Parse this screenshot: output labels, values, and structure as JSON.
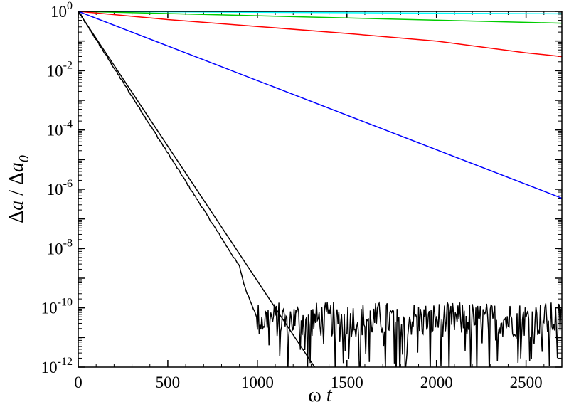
{
  "chart_data": {
    "type": "line",
    "xlabel": "ω t",
    "ylabel": "Δa / Δa0",
    "xlim": [
      0,
      2700
    ],
    "ylim_log10": [
      -12,
      0
    ],
    "y_scale": "log",
    "grid": false,
    "legend": "none",
    "x_ticks": [
      "0",
      "500",
      "1000",
      "1500",
      "2000",
      "2500"
    ],
    "y_ticks": [
      {
        "exp": 0,
        "base": "10",
        "sup": "0"
      },
      {
        "exp": -2,
        "base": "10",
        "sup": "-2"
      },
      {
        "exp": -4,
        "base": "10",
        "sup": "-4"
      },
      {
        "exp": -6,
        "base": "10",
        "sup": "-6"
      },
      {
        "exp": -8,
        "base": "10",
        "sup": "-8"
      },
      {
        "exp": -10,
        "base": "10",
        "sup": "-10"
      },
      {
        "exp": -12,
        "base": "10",
        "sup": "-12"
      }
    ],
    "series": [
      {
        "color": "#00ffff",
        "x": [
          0,
          2700
        ],
        "y": [
          1,
          0.83
        ]
      },
      {
        "color": "#00cc00",
        "x": [
          0,
          2700
        ],
        "y": [
          1,
          0.4
        ]
      },
      {
        "color": "#ff0000",
        "x": [
          0,
          500,
          1000,
          1500,
          2000,
          2500,
          2700
        ],
        "y": [
          1,
          0.53,
          0.31,
          0.18,
          0.1,
          0.04,
          0.03
        ]
      },
      {
        "color": "#0000ff",
        "x": [
          0,
          2700
        ],
        "y": [
          1,
          5e-07
        ]
      },
      {
        "color": "#000000",
        "x": [
          0,
          1320
        ],
        "y": [
          1,
          1e-12
        ]
      },
      {
        "color": "#000000",
        "noisy": true,
        "x": [
          0,
          900,
          930,
          950,
          970,
          990,
          1000,
          1010
        ],
        "y": [
          1,
          2.5e-09,
          5e-10,
          2.5e-10,
          1.3e-10,
          6e-11,
          4e-11,
          3e-11
        ],
        "noise_range_x": [
          1000,
          2700
        ],
        "noise_level": 8e-11
      }
    ]
  }
}
